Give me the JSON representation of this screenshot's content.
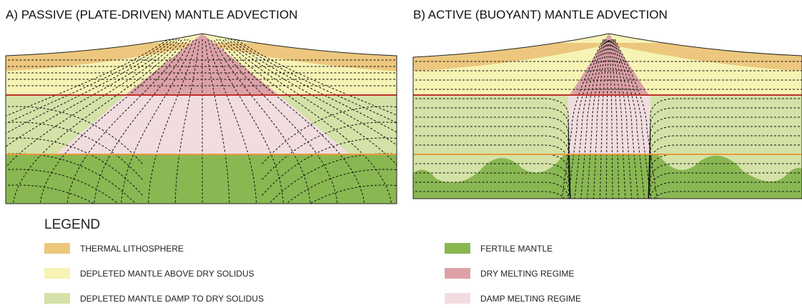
{
  "panels": [
    {
      "title": "A) PASSIVE (PLATE-DRIVEN) MANTLE ADVECTION"
    },
    {
      "title": "B) ACTIVE (BUOYANT) MANTLE ADVECTION"
    }
  ],
  "legend": {
    "title": "LEGEND",
    "items": [
      {
        "label": "THERMAL LITHOSPHERE",
        "color": "#ecc77d"
      },
      {
        "label": "DEPLETED MANTLE ABOVE DRY SOLIDUS",
        "color": "#f6f3b5"
      },
      {
        "label": "DEPLETED MANTLE DAMP TO DRY SOLIDUS",
        "color": "#d4e2a7"
      },
      {
        "label": "FERTILE MANTLE",
        "color": "#89b752"
      },
      {
        "label": "DRY MELTING REGIME",
        "color": "#dca2a7"
      },
      {
        "label": "DAMP MELTING REGIME",
        "color": "#f1dde0"
      }
    ]
  }
}
